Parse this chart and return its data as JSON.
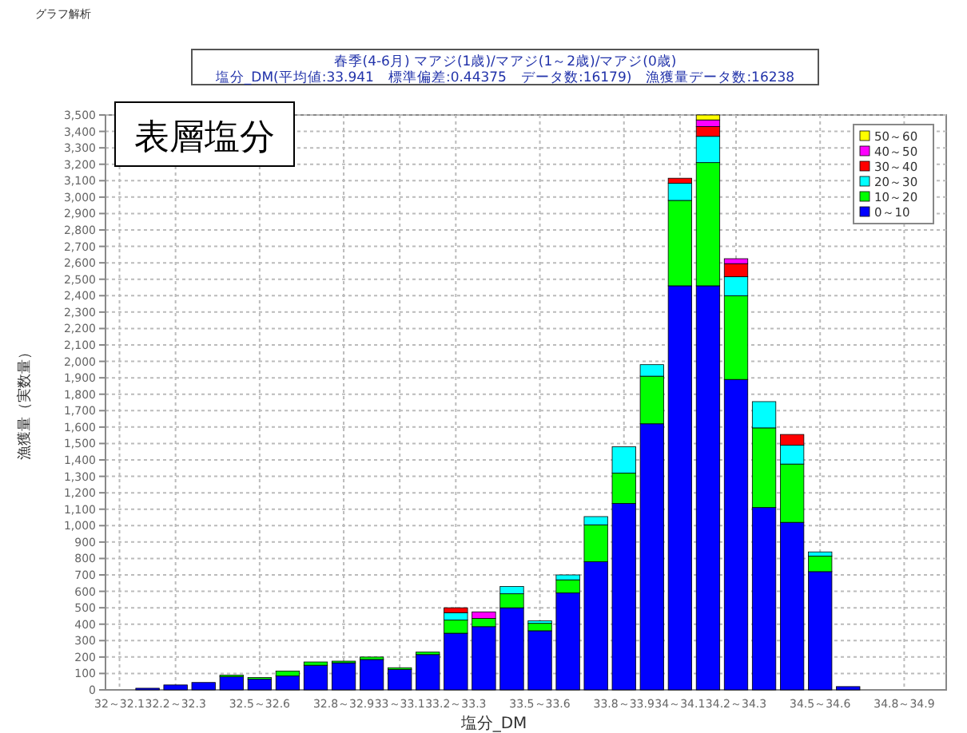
{
  "chart_data": {
    "type": "bar",
    "stacked": true,
    "title": "春季(4-6月) マアジ(1歳)/マアジ(1～2歳)/マアジ(0歳)",
    "subtitle": "塩分_DM(平均値:33.941　標準偏差:0.44375　データ数:16179)　漁獲量データ数:16238",
    "xlabel": "塩分_DM",
    "ylabel": "漁獲量（実数量）",
    "annotations": [
      "グラフ解析",
      "表層塩分"
    ],
    "categories": [
      "32～32.1",
      null,
      "32.2～32.3",
      null,
      null,
      "32.5～32.6",
      null,
      null,
      "32.8～32.9",
      null,
      "33～33.1",
      null,
      "33.2～33.3",
      null,
      null,
      "33.5～33.6",
      null,
      null,
      "33.8～33.9",
      null,
      "34～34.1",
      null,
      "34.2～34.3",
      null,
      null,
      "34.5～34.6",
      null,
      null,
      "34.8～34.9",
      null
    ],
    "series": [
      {
        "name": "0～10",
        "color": "#0000ff",
        "values": [
          0,
          10,
          30,
          45,
          80,
          65,
          85,
          150,
          165,
          185,
          125,
          215,
          345,
          385,
          500,
          360,
          590,
          780,
          1135,
          1620,
          2460,
          2460,
          1890,
          1110,
          1020,
          720,
          20,
          0,
          0,
          0
        ]
      },
      {
        "name": "10～20",
        "color": "#00ff00",
        "values": [
          0,
          0,
          0,
          0,
          10,
          10,
          30,
          20,
          10,
          15,
          10,
          15,
          80,
          50,
          85,
          45,
          80,
          225,
          185,
          290,
          520,
          750,
          510,
          485,
          355,
          95,
          0,
          0,
          0,
          0
        ]
      },
      {
        "name": "20～30",
        "color": "#00ffff",
        "values": [
          0,
          0,
          0,
          0,
          0,
          0,
          0,
          0,
          0,
          0,
          0,
          0,
          45,
          0,
          45,
          15,
          30,
          50,
          160,
          70,
          105,
          160,
          115,
          160,
          115,
          25,
          0,
          0,
          0,
          0
        ]
      },
      {
        "name": "30～40",
        "color": "#ff0000",
        "values": [
          0,
          0,
          0,
          0,
          0,
          0,
          0,
          0,
          0,
          0,
          0,
          0,
          30,
          0,
          0,
          0,
          0,
          0,
          0,
          0,
          30,
          60,
          80,
          0,
          65,
          0,
          0,
          0,
          0,
          0
        ]
      },
      {
        "name": "40～50",
        "color": "#ff00ff",
        "values": [
          0,
          0,
          0,
          0,
          0,
          0,
          0,
          0,
          0,
          0,
          0,
          0,
          0,
          40,
          0,
          0,
          0,
          0,
          0,
          0,
          0,
          40,
          30,
          0,
          0,
          0,
          0,
          0,
          0,
          0
        ]
      },
      {
        "name": "50～60",
        "color": "#ffff00",
        "values": [
          0,
          0,
          0,
          0,
          0,
          0,
          0,
          0,
          0,
          0,
          0,
          0,
          0,
          0,
          0,
          0,
          0,
          0,
          0,
          0,
          0,
          30,
          0,
          0,
          0,
          0,
          0,
          0,
          0,
          0
        ]
      }
    ],
    "ylim": [
      0,
      3500
    ],
    "yticks": [
      0,
      100,
      200,
      300,
      400,
      500,
      600,
      700,
      800,
      900,
      {
        "value": 1000,
        "label": "1,000"
      },
      {
        "value": 1100,
        "label": "1,100"
      },
      {
        "value": 1200,
        "label": "1,200"
      },
      {
        "value": 1300,
        "label": "1,300"
      },
      {
        "value": 1400,
        "label": "1,400"
      },
      {
        "value": 1500,
        "label": "1,500"
      },
      {
        "value": 1600,
        "label": "1,600"
      },
      {
        "value": 1700,
        "label": "1,700"
      },
      {
        "value": 1800,
        "label": "1,800"
      },
      {
        "value": 1900,
        "label": "1,900"
      },
      {
        "value": 2000,
        "label": "2,000"
      },
      {
        "value": 2100,
        "label": "2,100"
      },
      {
        "value": 2200,
        "label": "2,200"
      },
      {
        "value": 2300,
        "label": "2,300"
      },
      {
        "value": 2400,
        "label": "2,400"
      },
      {
        "value": 2500,
        "label": "2,500"
      },
      {
        "value": 2600,
        "label": "2,600"
      },
      {
        "value": 2700,
        "label": "2,700"
      },
      {
        "value": 2800,
        "label": "2,800"
      },
      {
        "value": 2900,
        "label": "2,900"
      },
      {
        "value": 3000,
        "label": "3,000"
      },
      {
        "value": 3100,
        "label": "3,100"
      },
      {
        "value": 3200,
        "label": "3,200"
      },
      {
        "value": 3300,
        "label": "3,300"
      },
      {
        "value": 3400,
        "label": "3,400"
      },
      {
        "value": 3500,
        "label": "3,500"
      }
    ],
    "grid": true,
    "legend": "top right"
  }
}
